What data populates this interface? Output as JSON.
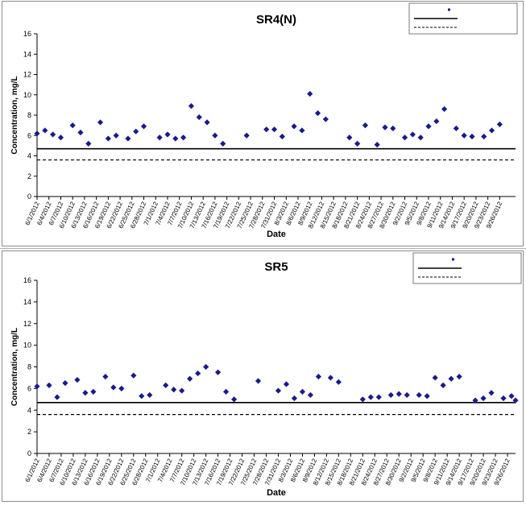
{
  "colors": {
    "marker": "#1a1a8c",
    "line": "#000000",
    "axis": "#000000"
  },
  "chart_data": [
    {
      "type": "scatter",
      "title": "SR4(N)",
      "xlabel": "Date",
      "ylabel": "Concentration, mg/L",
      "ylim": [
        0,
        16
      ],
      "yticks": [
        "0",
        "2",
        "4",
        "6",
        "8",
        "10",
        "12",
        "14",
        "16"
      ],
      "xticks": [
        "6/1/2012",
        "6/4/2012",
        "6/7/2012",
        "6/10/2012",
        "6/13/2012",
        "6/16/2012",
        "6/19/2012",
        "6/22/2012",
        "6/25/2012",
        "6/28/2012",
        "7/1/2012",
        "7/4/2012",
        "7/7/2012",
        "7/10/2012",
        "7/13/2012",
        "7/16/2012",
        "7/19/2012",
        "7/22/2012",
        "7/25/2012",
        "7/28/2012",
        "7/31/2012",
        "8/3/2012",
        "8/6/2012",
        "8/9/2012",
        "8/12/2012",
        "8/15/2012",
        "8/18/2012",
        "8/21/2012",
        "8/24/2012",
        "8/27/2012",
        "8/30/2012",
        "9/2/2012",
        "9/5/2012",
        "9/8/2012",
        "9/11/2012",
        "9/14/2012",
        "9/17/2012",
        "9/20/2012",
        "9/23/2012",
        "9/26/2012"
      ],
      "xlim": [
        "2012-06-01",
        "2012-09-30"
      ],
      "legend": {
        "position": "top-right",
        "entries": [
          "",
          "",
          ""
        ]
      },
      "reference_lines": [
        {
          "style": "solid",
          "y": 4.7
        },
        {
          "style": "dashed",
          "y": 3.6
        }
      ],
      "series": [
        {
          "x": [
            "2012-06-01",
            "2012-06-03",
            "2012-06-05",
            "2012-06-07",
            "2012-06-10",
            "2012-06-12",
            "2012-06-14",
            "2012-06-17",
            "2012-06-19",
            "2012-06-21",
            "2012-06-24",
            "2012-06-26",
            "2012-06-28",
            "2012-07-02",
            "2012-07-04",
            "2012-07-06",
            "2012-07-08",
            "2012-07-10",
            "2012-07-12",
            "2012-07-14",
            "2012-07-16",
            "2012-07-18",
            "2012-07-24",
            "2012-07-29",
            "2012-07-31",
            "2012-08-02",
            "2012-08-05",
            "2012-08-07",
            "2012-08-09",
            "2012-08-11",
            "2012-08-13",
            "2012-08-19",
            "2012-08-21",
            "2012-08-23",
            "2012-08-26",
            "2012-08-28",
            "2012-08-30",
            "2012-09-02",
            "2012-09-04",
            "2012-09-06",
            "2012-09-08",
            "2012-09-10",
            "2012-09-12",
            "2012-09-15",
            "2012-09-17",
            "2012-09-19",
            "2012-09-22",
            "2012-09-24",
            "2012-09-26"
          ],
          "y": [
            6.2,
            6.5,
            6.1,
            5.8,
            7.0,
            6.3,
            5.2,
            7.3,
            5.7,
            6.0,
            5.7,
            6.4,
            6.9,
            5.8,
            6.1,
            5.7,
            5.8,
            8.9,
            7.8,
            7.3,
            6.0,
            5.2,
            6.0,
            6.6,
            6.6,
            5.9,
            6.9,
            6.5,
            10.1,
            8.2,
            7.6,
            5.8,
            5.2,
            7.0,
            5.1,
            6.8,
            6.7,
            5.8,
            6.1,
            5.8,
            6.9,
            7.4,
            8.6,
            6.7,
            6.0,
            5.9,
            5.9,
            6.5,
            7.1
          ]
        }
      ]
    },
    {
      "type": "scatter",
      "title": "SR5",
      "xlabel": "Date",
      "ylabel": "Concentration, mg/L",
      "ylim": [
        0,
        16
      ],
      "yticks": [
        "0",
        "2",
        "4",
        "6",
        "8",
        "10",
        "12",
        "14",
        "16"
      ],
      "xticks": [
        "6/1/2012",
        "6/4/2012",
        "6/7/2012",
        "6/10/2012",
        "6/13/2012",
        "6/16/2012",
        "6/19/2012",
        "6/22/2012",
        "6/25/2012",
        "6/28/2012",
        "7/1/2012",
        "7/4/2012",
        "7/7/2012",
        "7/10/2012",
        "7/13/2012",
        "7/16/2012",
        "7/19/2012",
        "7/22/2012",
        "7/25/2012",
        "7/28/2012",
        "7/31/2012",
        "8/3/2012",
        "8/6/2012",
        "8/9/2012",
        "8/12/2012",
        "8/15/2012",
        "8/18/2012",
        "8/21/2012",
        "8/24/2012",
        "8/27/2012",
        "8/30/2012",
        "9/2/2012",
        "9/5/2012",
        "9/8/2012",
        "9/11/2012",
        "9/14/2012",
        "9/17/2012",
        "9/20/2012",
        "9/23/2012",
        "9/26/2012"
      ],
      "xlim": [
        "2012-06-01",
        "2012-09-28"
      ],
      "legend": {
        "position": "top-right",
        "entries": [
          "",
          "",
          ""
        ]
      },
      "reference_lines": [
        {
          "style": "solid",
          "y": 4.7
        },
        {
          "style": "dashed",
          "y": 3.6
        }
      ],
      "series": [
        {
          "x": [
            "2012-06-01",
            "2012-06-04",
            "2012-06-06",
            "2012-06-08",
            "2012-06-11",
            "2012-06-13",
            "2012-06-15",
            "2012-06-18",
            "2012-06-20",
            "2012-06-22",
            "2012-06-25",
            "2012-06-27",
            "2012-06-29",
            "2012-07-03",
            "2012-07-05",
            "2012-07-07",
            "2012-07-09",
            "2012-07-11",
            "2012-07-13",
            "2012-07-16",
            "2012-07-18",
            "2012-07-20",
            "2012-07-26",
            "2012-07-31",
            "2012-08-02",
            "2012-08-04",
            "2012-08-06",
            "2012-08-08",
            "2012-08-10",
            "2012-08-13",
            "2012-08-15",
            "2012-08-21",
            "2012-08-23",
            "2012-08-25",
            "2012-08-28",
            "2012-08-30",
            "2012-09-01",
            "2012-09-04",
            "2012-09-06",
            "2012-09-08",
            "2012-09-10",
            "2012-09-12",
            "2012-09-14",
            "2012-09-18",
            "2012-09-20",
            "2012-09-22",
            "2012-09-25",
            "2012-09-27",
            "2012-09-28"
          ],
          "y": [
            6.2,
            6.3,
            5.2,
            6.5,
            6.8,
            5.6,
            5.7,
            7.1,
            6.1,
            6.0,
            7.2,
            5.3,
            5.4,
            6.3,
            5.9,
            5.8,
            6.9,
            7.4,
            8.0,
            7.5,
            5.7,
            5.0,
            6.7,
            5.8,
            6.4,
            5.1,
            5.7,
            5.4,
            7.1,
            7.0,
            6.6,
            5.0,
            5.2,
            5.2,
            5.4,
            5.5,
            5.4,
            5.4,
            5.3,
            7.0,
            6.3,
            6.9,
            7.1,
            4.9,
            5.1,
            5.6,
            5.1,
            5.3,
            4.9
          ]
        }
      ]
    }
  ]
}
